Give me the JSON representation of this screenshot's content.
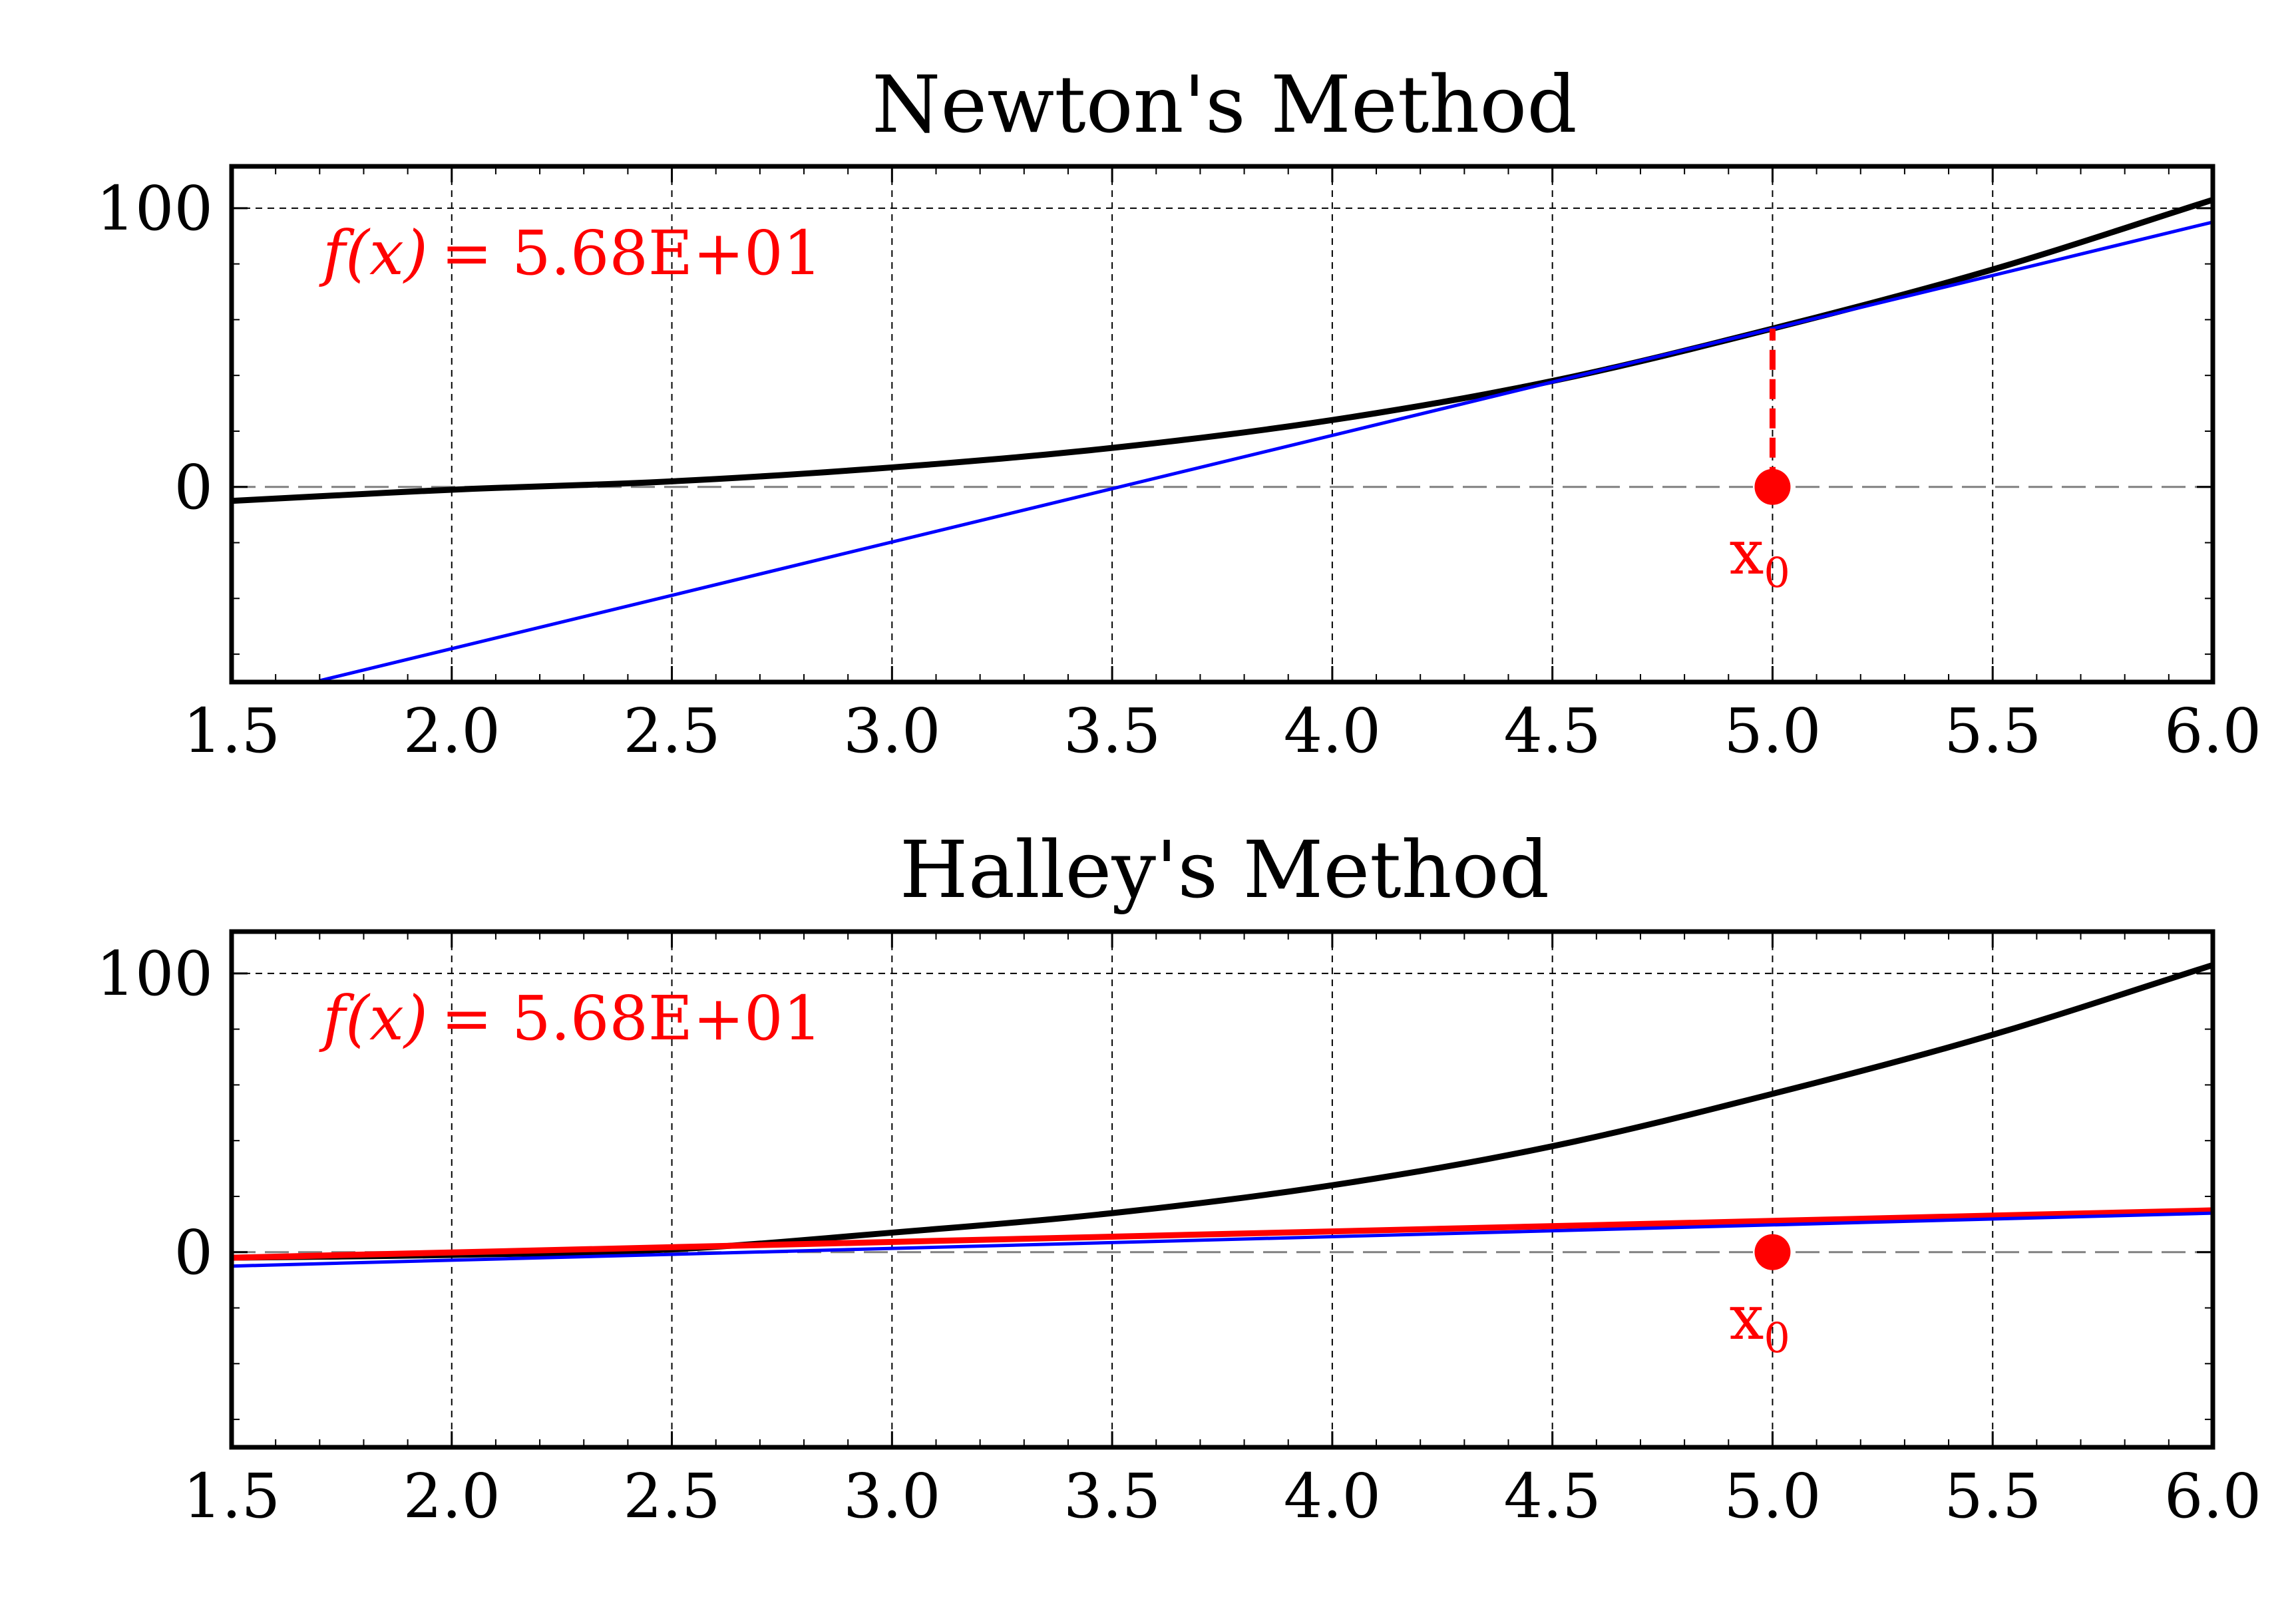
{
  "colors": {
    "function": "#000000",
    "tangent": "#0000ff",
    "approximation": "#ff0000",
    "marker": "#ff0000",
    "annotation": "#ff0000",
    "grid": "#000000",
    "zero_line": "#808080"
  },
  "chart_data": [
    {
      "type": "line",
      "title": "Newton's Method",
      "xlabel": "",
      "ylabel": "",
      "xlim": [
        1.5,
        6.0
      ],
      "ylim": [
        -70,
        115
      ],
      "x_ticks": [
        "1.5",
        "2.0",
        "2.5",
        "3.0",
        "3.5",
        "4.0",
        "4.5",
        "5.0",
        "5.5",
        "6.0"
      ],
      "y_ticks": [
        "0",
        "100"
      ],
      "grid": true,
      "function_points": {
        "x": [
          1.5,
          2.0,
          2.5,
          3.0,
          3.5,
          4.0,
          4.5,
          5.0,
          5.5,
          6.0
        ],
        "y": [
          -5,
          -1,
          2,
          7,
          14,
          24,
          38,
          56.8,
          78,
          103
        ]
      },
      "tangent_line": {
        "x": [
          1.7,
          6.0
        ],
        "y": [
          -69.5,
          95
        ]
      },
      "x0": {
        "x": 5.0,
        "y": 0,
        "fx": 56.8
      },
      "annotation": {
        "fx_label": "f(x)",
        "value_text": "= 5.68E+01"
      },
      "x0_label": "x",
      "x0_subscript": "0"
    },
    {
      "type": "line",
      "title": "Halley's Method",
      "xlabel": "",
      "ylabel": "",
      "xlim": [
        1.5,
        6.0
      ],
      "ylim": [
        -70,
        115
      ],
      "x_ticks": [
        "1.5",
        "2.0",
        "2.5",
        "3.0",
        "3.5",
        "4.0",
        "4.5",
        "5.0",
        "5.5",
        "6.0"
      ],
      "y_ticks": [
        "0",
        "100"
      ],
      "grid": true,
      "function_points": {
        "x": [
          1.5,
          2.0,
          2.5,
          3.0,
          3.5,
          4.0,
          4.5,
          5.0,
          5.5,
          6.0
        ],
        "y": [
          -2,
          -1,
          1,
          7,
          14,
          24,
          38,
          56.8,
          78,
          103
        ]
      },
      "tangent_line": {
        "x": [
          1.5,
          6.0
        ],
        "y": [
          -5,
          14
        ]
      },
      "approximation_line": {
        "x": [
          1.5,
          6.0
        ],
        "y": [
          -2,
          15
        ]
      },
      "x0": {
        "x": 5.0,
        "y": 0
      },
      "annotation": {
        "fx_label": "f(x)",
        "value_text": "= 5.68E+01"
      },
      "x0_label": "x",
      "x0_subscript": "0"
    }
  ]
}
